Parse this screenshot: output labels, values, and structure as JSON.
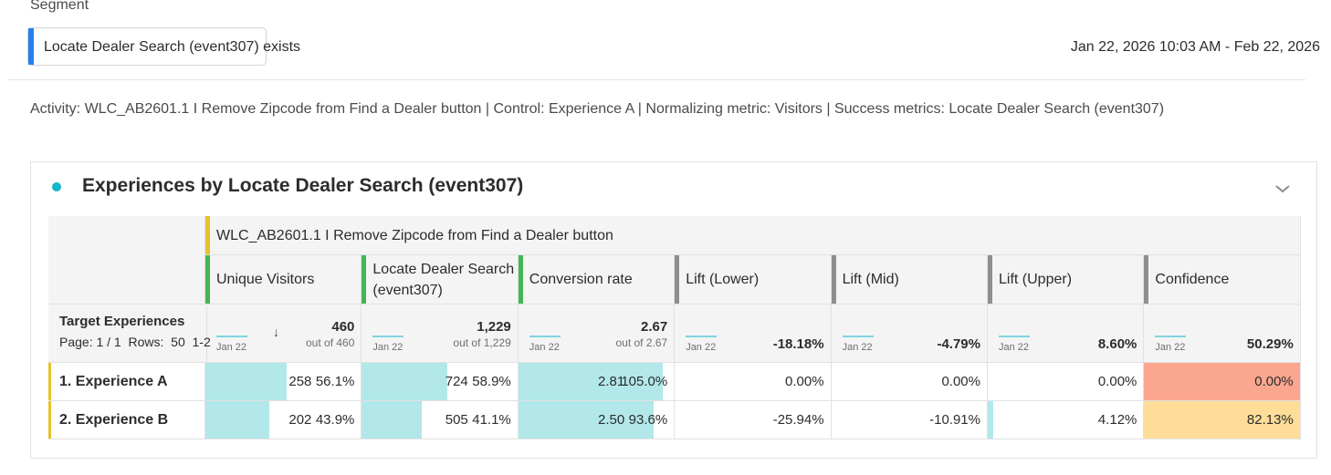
{
  "segment": {
    "label": "Segment",
    "value": "Locate Dealer Search (event307) exists"
  },
  "date_range": "Jan 22, 2026 10:03 AM - Feb 22, 2026",
  "description": "Activity: WLC_AB2601.1 I Remove Zipcode from Find a Dealer button | Control: Experience A | Normalizing metric: Visitors | Success metrics: Locate Dealer Search (event307)",
  "panel": {
    "title": "Experiences by Locate Dealer Search (event307)",
    "accent_color": "#12b5cb",
    "activity": "WLC_AB2601.1 I Remove Zipcode from Find a Dealer button",
    "row_header": {
      "title": "Target Experiences",
      "paging": "Page: 1 / 1  Rows:  50  1-2"
    },
    "columns": [
      {
        "name": "Unique Visitors",
        "accent": "#44b556",
        "spark": "Jan 22",
        "total": "460",
        "out_of": "out of 460",
        "sorted": true
      },
      {
        "name": "Locate Dealer Search (event307)",
        "accent": "#44b556",
        "spark": "Jan 22",
        "total": "1,229",
        "out_of": "out of 1,229"
      },
      {
        "name": "Conversion rate",
        "accent": "#44b556",
        "spark": "Jan 22",
        "total": "2.67",
        "out_of": "out of 2.67"
      },
      {
        "name": "Lift (Lower)",
        "accent": "#8e8e8e",
        "spark": "Jan 22",
        "total": "-18.18%"
      },
      {
        "name": "Lift (Mid)",
        "accent": "#8e8e8e",
        "spark": "Jan 22",
        "total": "-4.79%"
      },
      {
        "name": "Lift (Upper)",
        "accent": "#8e8e8e",
        "spark": "Jan 22",
        "total": "8.60%"
      },
      {
        "name": "Confidence",
        "accent": "#8e8e8e",
        "spark": "Jan 22",
        "total": "50.29%"
      }
    ],
    "rows": [
      {
        "label": "1.  Experience A",
        "cells": [
          {
            "value": "258",
            "pct": "56.1%",
            "fill": 0.561
          },
          {
            "value": "724",
            "pct": "58.9%",
            "fill": 0.589
          },
          {
            "value": "2.81",
            "pct": "105.0%",
            "fill": 1.0
          },
          {
            "value": "0.00%",
            "fill": 0
          },
          {
            "value": "0.00%",
            "fill": 0
          },
          {
            "value": "0.00%",
            "fill": 0
          },
          {
            "value": "0.00%",
            "bg": "#fba78f"
          }
        ]
      },
      {
        "label": "2.  Experience B",
        "cells": [
          {
            "value": "202",
            "pct": "43.9%",
            "fill": 0.439
          },
          {
            "value": "505",
            "pct": "41.1%",
            "fill": 0.411
          },
          {
            "value": "2.50",
            "pct": "93.6%",
            "fill": 0.936
          },
          {
            "value": "-25.94%",
            "fill": 0
          },
          {
            "value": "-10.91%",
            "fill": 0
          },
          {
            "value": "4.12%",
            "fill": 0.04
          },
          {
            "value": "82.13%",
            "bg": "#fddd98"
          }
        ]
      }
    ],
    "row_accent": "#e6c229"
  }
}
